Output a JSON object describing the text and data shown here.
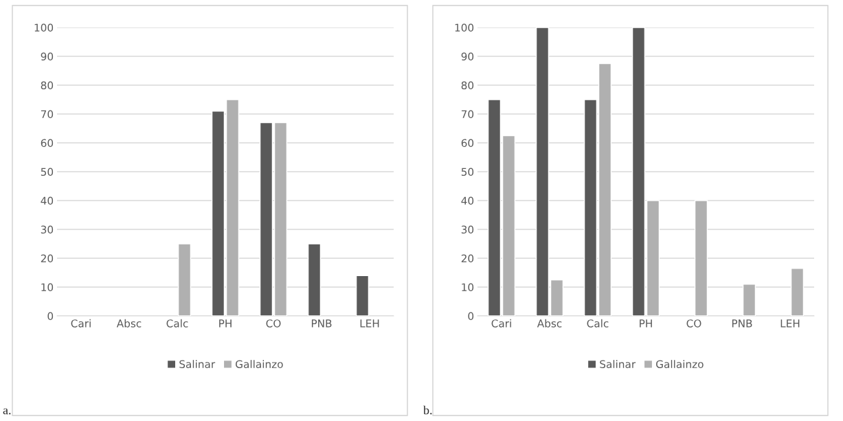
{
  "chart_data": [
    {
      "type": "bar",
      "categories": [
        "Cari",
        "Absc",
        "Calc",
        "PH",
        "CO",
        "PNB",
        "LEH"
      ],
      "ylim": [
        0,
        100
      ],
      "yticks": [
        0,
        10,
        20,
        30,
        40,
        50,
        60,
        70,
        80,
        90,
        100
      ],
      "grid": "y",
      "legend": "bottom",
      "annotations": [
        "a."
      ],
      "series": [
        {
          "name": "Salinar",
          "color": "#595959",
          "values": [
            null,
            null,
            null,
            71,
            67,
            25,
            14
          ]
        },
        {
          "name": "Gallainzo",
          "color": "#b0b0b0",
          "values": [
            null,
            null,
            25,
            75,
            67,
            null,
            null
          ]
        }
      ]
    },
    {
      "type": "bar",
      "categories": [
        "Cari",
        "Absc",
        "Calc",
        "PH",
        "CO",
        "PNB",
        "LEH"
      ],
      "ylim": [
        0,
        100
      ],
      "yticks": [
        0,
        10,
        20,
        30,
        40,
        50,
        60,
        70,
        80,
        90,
        100
      ],
      "grid": "y",
      "legend": "bottom",
      "annotations": [
        "b."
      ],
      "series": [
        {
          "name": "Salinar",
          "color": "#595959",
          "values": [
            75,
            100,
            75,
            100,
            null,
            null,
            null
          ]
        },
        {
          "name": "Gallainzo",
          "color": "#b0b0b0",
          "values": [
            62.5,
            12.5,
            87.5,
            40,
            40,
            11,
            16.5
          ]
        }
      ]
    }
  ]
}
